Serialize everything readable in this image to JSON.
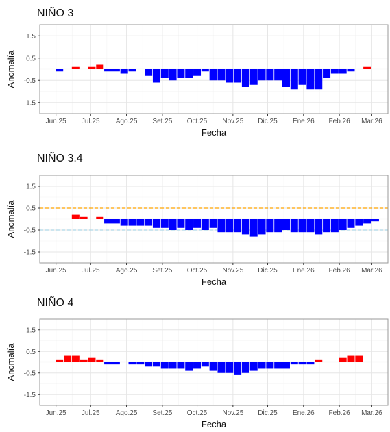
{
  "colors": {
    "positive": "#ff0000",
    "negative": "#0000ff",
    "warm_threshold": "#ffa500",
    "cold_threshold": "#add8e6",
    "grid_major": "#e6e6e6",
    "grid_minor": "#f3f3f3",
    "panel_border": "#999999"
  },
  "chart_data": [
    {
      "type": "bar",
      "title": "NIÑO 3",
      "xlabel": "Fecha",
      "ylabel": "Anomalía",
      "x_ticks": [
        "Jun.25",
        "Jul.25",
        "Ago.25",
        "Set.25",
        "Oct.25",
        "Nov.25",
        "Dic.25",
        "Ene.26",
        "Feb.26",
        "Mar.26"
      ],
      "y_ticks": [
        "1.5",
        "0.5",
        "-0.5",
        "-1.5"
      ],
      "ylim": [
        -2.0,
        2.0
      ],
      "threshold_lines": [],
      "x": [
        "2025-06-04",
        "2025-06-11",
        "2025-06-18",
        "2025-06-25",
        "2025-07-02",
        "2025-07-09",
        "2025-07-16",
        "2025-07-23",
        "2025-07-30",
        "2025-08-06",
        "2025-08-13",
        "2025-08-20",
        "2025-08-27",
        "2025-09-03",
        "2025-09-10",
        "2025-09-17",
        "2025-09-24",
        "2025-10-01",
        "2025-10-08",
        "2025-10-15",
        "2025-10-22",
        "2025-10-29",
        "2025-11-05",
        "2025-11-12",
        "2025-11-19",
        "2025-11-26",
        "2025-12-03",
        "2025-12-10",
        "2025-12-17",
        "2025-12-24",
        "2025-12-31",
        "2026-01-07",
        "2026-01-14",
        "2026-01-21",
        "2026-01-28",
        "2026-02-04",
        "2026-02-11",
        "2026-02-18",
        "2026-02-25",
        "2026-03-04"
      ],
      "values": [
        -0.1,
        null,
        0.1,
        null,
        0.1,
        0.2,
        -0.1,
        -0.1,
        -0.2,
        -0.1,
        null,
        -0.3,
        -0.6,
        -0.4,
        -0.5,
        -0.4,
        -0.4,
        -0.3,
        -0.1,
        -0.5,
        -0.5,
        -0.6,
        -0.6,
        -0.8,
        -0.7,
        -0.5,
        -0.5,
        -0.5,
        -0.8,
        -0.9,
        -0.7,
        -0.9,
        -0.9,
        -0.4,
        -0.2,
        -0.2,
        -0.1,
        null,
        0.1,
        null
      ]
    },
    {
      "type": "bar",
      "title": "NIÑO 3.4",
      "xlabel": "Fecha",
      "ylabel": "Anomalía",
      "x_ticks": [
        "Jun.25",
        "Jul.25",
        "Ago.25",
        "Set.25",
        "Oct.25",
        "Nov.25",
        "Dic.25",
        "Ene.26",
        "Feb.26",
        "Mar.26"
      ],
      "y_ticks": [
        "1.5",
        "0.5",
        "-0.5",
        "-1.5"
      ],
      "ylim": [
        -2.0,
        2.0
      ],
      "threshold_lines": [
        0.5,
        -0.5
      ],
      "x": [
        "2025-06-04",
        "2025-06-11",
        "2025-06-18",
        "2025-06-25",
        "2025-07-02",
        "2025-07-09",
        "2025-07-16",
        "2025-07-23",
        "2025-07-30",
        "2025-08-06",
        "2025-08-13",
        "2025-08-20",
        "2025-08-27",
        "2025-09-03",
        "2025-09-10",
        "2025-09-17",
        "2025-09-24",
        "2025-10-01",
        "2025-10-08",
        "2025-10-15",
        "2025-10-22",
        "2025-10-29",
        "2025-11-05",
        "2025-11-12",
        "2025-11-19",
        "2025-11-26",
        "2025-12-03",
        "2025-12-10",
        "2025-12-17",
        "2025-12-24",
        "2025-12-31",
        "2026-01-07",
        "2026-01-14",
        "2026-01-21",
        "2026-01-28",
        "2026-02-04",
        "2026-02-11",
        "2026-02-18",
        "2026-02-25",
        "2026-03-04"
      ],
      "values": [
        null,
        null,
        0.2,
        0.1,
        null,
        0.1,
        -0.2,
        -0.2,
        -0.3,
        -0.3,
        -0.3,
        -0.3,
        -0.4,
        -0.4,
        -0.5,
        -0.4,
        -0.5,
        -0.4,
        -0.5,
        -0.4,
        -0.6,
        -0.6,
        -0.6,
        -0.7,
        -0.8,
        -0.7,
        -0.6,
        -0.6,
        -0.5,
        -0.6,
        -0.6,
        -0.6,
        -0.7,
        -0.6,
        -0.6,
        -0.5,
        -0.4,
        -0.3,
        -0.2,
        -0.1
      ]
    },
    {
      "type": "bar",
      "title": "NIÑO 4",
      "xlabel": "Fecha",
      "ylabel": "Anomalía",
      "x_ticks": [
        "Jun.25",
        "Jul.25",
        "Ago.25",
        "Set.25",
        "Oct.25",
        "Nov.25",
        "Dic.25",
        "Ene.26",
        "Feb.26",
        "Mar.26"
      ],
      "y_ticks": [
        "1.5",
        "0.5",
        "-0.5",
        "-1.5"
      ],
      "ylim": [
        -2.0,
        2.0
      ],
      "threshold_lines": [],
      "x": [
        "2025-06-04",
        "2025-06-11",
        "2025-06-18",
        "2025-06-25",
        "2025-07-02",
        "2025-07-09",
        "2025-07-16",
        "2025-07-23",
        "2025-07-30",
        "2025-08-06",
        "2025-08-13",
        "2025-08-20",
        "2025-08-27",
        "2025-09-03",
        "2025-09-10",
        "2025-09-17",
        "2025-09-24",
        "2025-10-01",
        "2025-10-08",
        "2025-10-15",
        "2025-10-22",
        "2025-10-29",
        "2025-11-05",
        "2025-11-12",
        "2025-11-19",
        "2025-11-26",
        "2025-12-03",
        "2025-12-10",
        "2025-12-17",
        "2025-12-24",
        "2025-12-31",
        "2026-01-07",
        "2026-01-14",
        "2026-01-21",
        "2026-01-28",
        "2026-02-04",
        "2026-02-11",
        "2026-02-18",
        "2026-02-25",
        "2026-03-04"
      ],
      "values": [
        0.1,
        0.3,
        0.3,
        0.1,
        0.2,
        0.1,
        -0.1,
        -0.1,
        null,
        -0.1,
        -0.1,
        -0.2,
        -0.2,
        -0.3,
        -0.3,
        -0.3,
        -0.4,
        -0.3,
        -0.2,
        -0.4,
        -0.5,
        -0.5,
        -0.6,
        -0.5,
        -0.4,
        -0.3,
        -0.3,
        -0.3,
        -0.3,
        -0.1,
        -0.1,
        -0.1,
        0.1,
        null,
        null,
        0.2,
        0.3,
        0.3,
        null,
        null
      ]
    }
  ]
}
